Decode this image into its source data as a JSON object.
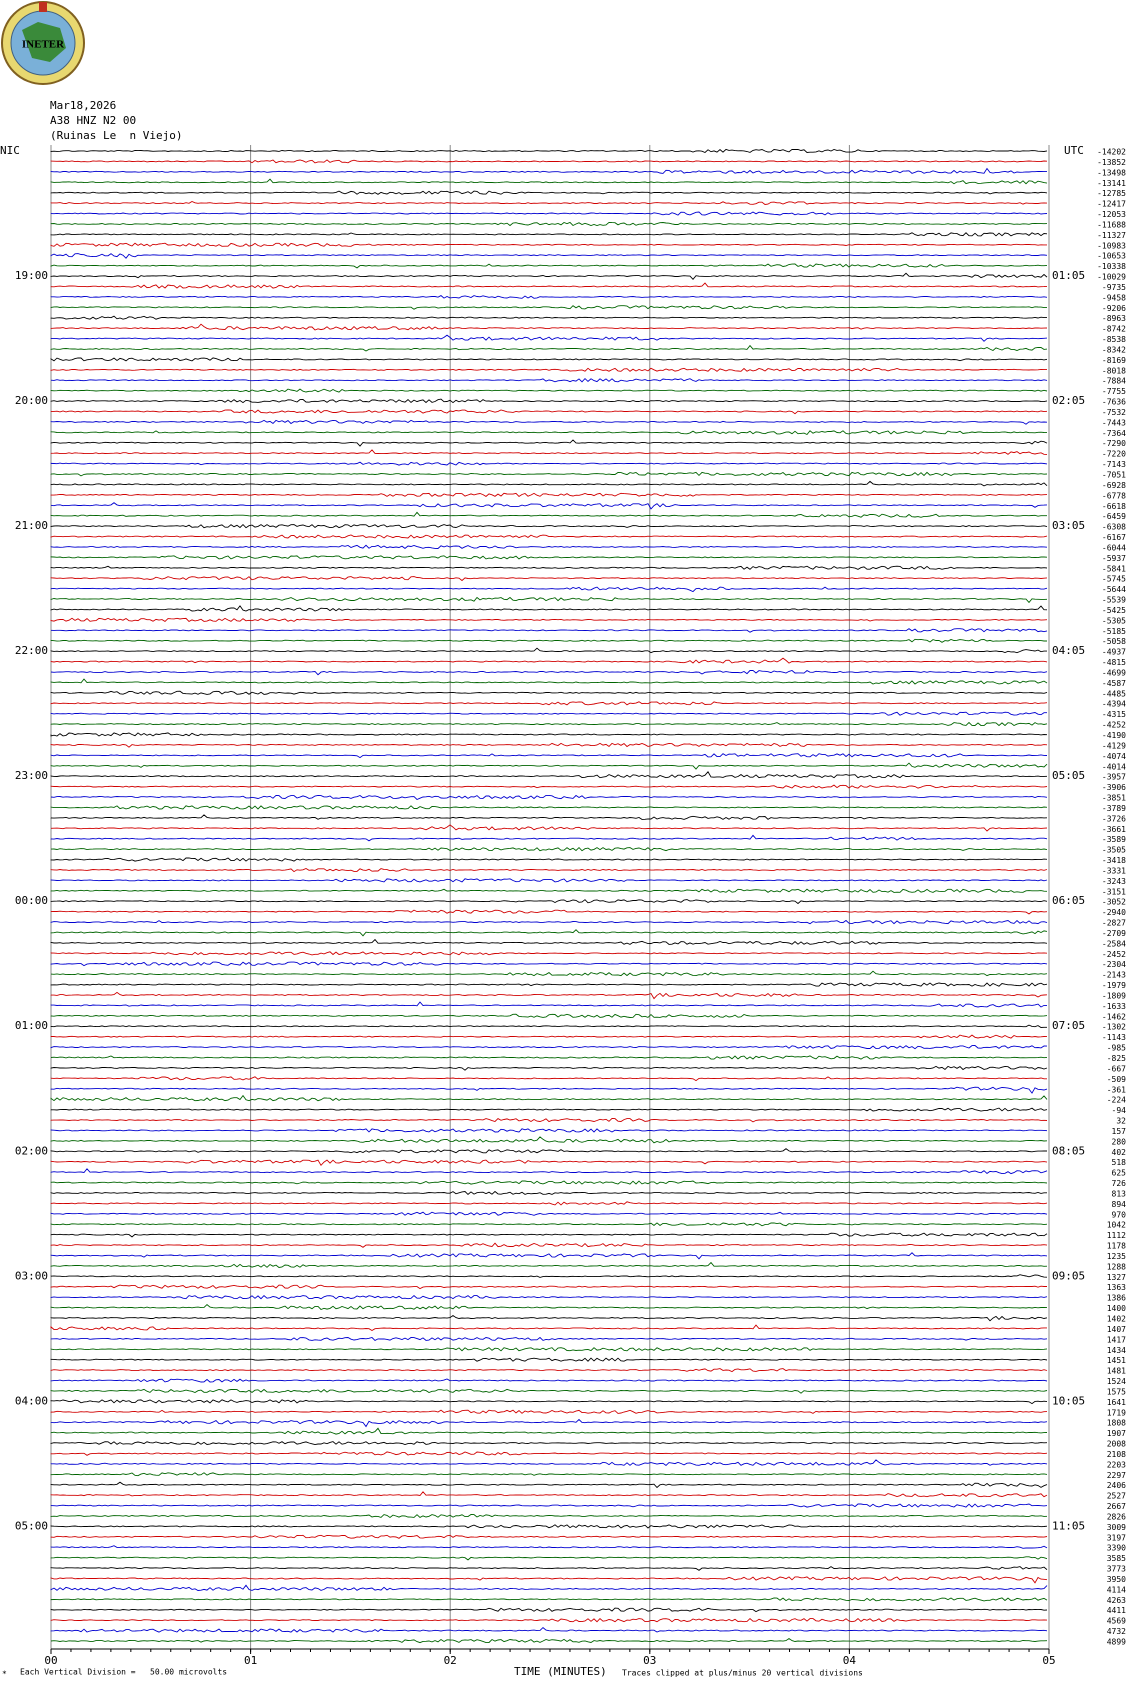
{
  "header": {
    "date": "Mar18,2026",
    "station": "A38 HNZ N2 00",
    "location": "(Ruinas Le  n Viejo)"
  },
  "logo_text": "INETER",
  "chart_data": {
    "type": "helicorder",
    "left_zone": "NIC",
    "right_zone": "UTC",
    "left_times": [
      "19:00",
      "20:00",
      "21:00",
      "22:00",
      "23:00",
      "00:00",
      "01:00",
      "02:00",
      "03:00",
      "04:00",
      "05:00"
    ],
    "right_times": [
      "01:05",
      "02:05",
      "03:05",
      "04:05",
      "05:05",
      "06:05",
      "07:05",
      "08:05",
      "09:05",
      "10:05",
      "11:05"
    ],
    "trace_offsets": [
      -14202,
      -13852,
      -13498,
      -13141,
      -12785,
      -12417,
      -12053,
      -11688,
      -11327,
      -10983,
      -10653,
      -10338,
      -10029,
      -9735,
      -9458,
      -9206,
      -8963,
      -8742,
      -8538,
      -8342,
      -8169,
      -8018,
      -7884,
      -7755,
      -7636,
      -7532,
      -7443,
      -7364,
      -7290,
      -7220,
      -7143,
      -7051,
      -6928,
      -6778,
      -6618,
      -6459,
      -6308,
      -6167,
      -6044,
      -5937,
      -5841,
      -5745,
      -5644,
      -5539,
      -5425,
      -5305,
      -5185,
      -5058,
      -4937,
      -4815,
      -4699,
      -4587,
      -4485,
      -4394,
      -4315,
      -4252,
      -4190,
      -4129,
      -4074,
      -4014,
      -3957,
      -3906,
      -3851,
      -3789,
      -3726,
      -3661,
      -3589,
      -3505,
      -3418,
      -3331,
      -3243,
      -3151,
      -3052,
      -2940,
      -2827,
      -2709,
      -2584,
      -2452,
      -2304,
      -2143,
      -1979,
      -1809,
      -1633,
      -1462,
      -1302,
      -1143,
      -985,
      -825,
      -667,
      -509,
      -361,
      -224,
      -94,
      32,
      157,
      280,
      402,
      518,
      625,
      726,
      813,
      894,
      970,
      1042,
      1112,
      1178,
      1235,
      1288,
      1327,
      1363,
      1386,
      1400,
      1402,
      1407,
      1417,
      1434,
      1451,
      1481,
      1524,
      1575,
      1641,
      1719,
      1808,
      1907,
      2008,
      2108,
      2203,
      2297,
      2406,
      2527,
      2667,
      2826,
      3009,
      3197,
      3390,
      3585,
      3773,
      3950,
      4114,
      4263,
      4411,
      4569,
      4732,
      4899
    ],
    "xlabel": "TIME (MINUTES)",
    "xlim": [
      0,
      5
    ],
    "xticks": [
      {
        "value": 0,
        "label": "00"
      },
      {
        "value": 1,
        "label": "01"
      },
      {
        "value": 2,
        "label": "02"
      },
      {
        "value": 3,
        "label": "03"
      },
      {
        "value": 4,
        "label": "04"
      },
      {
        "value": 5,
        "label": "05"
      }
    ],
    "scale_note": "Each Vertical Division =   50.00 microvolts",
    "clip_note": "Traces clipped at plus/minus 20 vertical divisions",
    "colors": [
      "#000000",
      "#d00000",
      "#0000d0",
      "#006400"
    ],
    "grid": true
  }
}
